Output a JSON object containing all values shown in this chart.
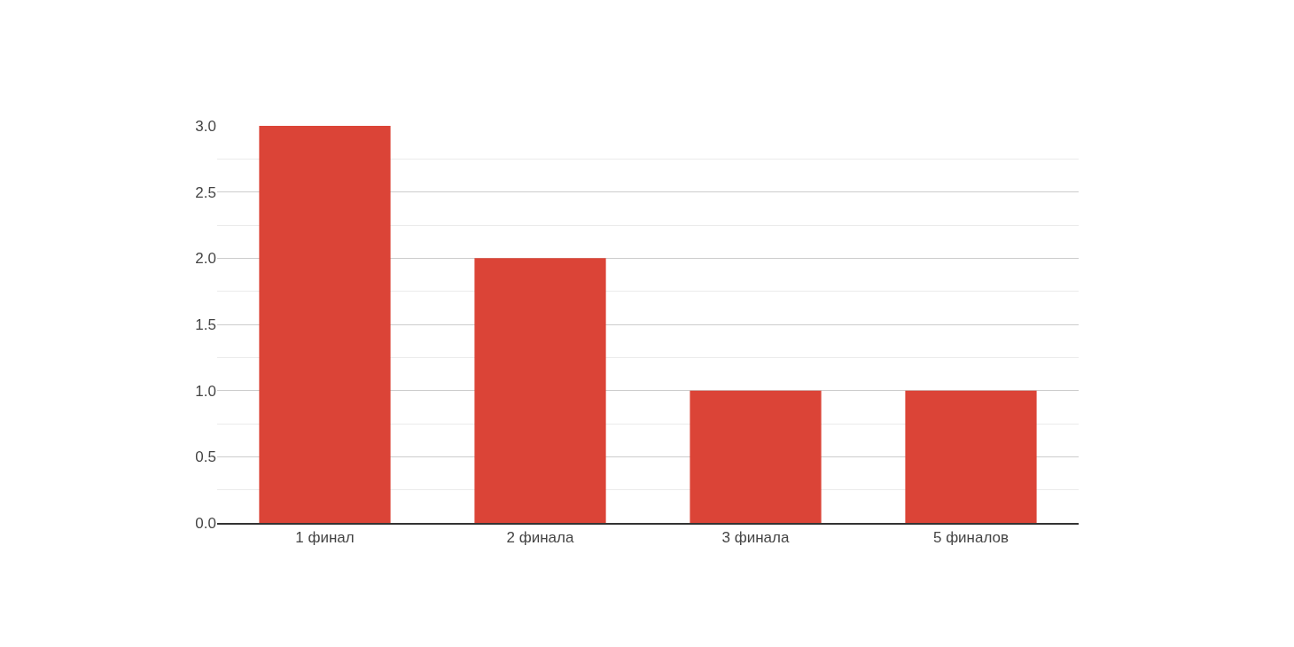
{
  "chart_data": {
    "type": "bar",
    "categories": [
      "1 финал",
      "2 финала",
      "3 финала",
      "5 финалов"
    ],
    "values": [
      3,
      2,
      1,
      1
    ],
    "color": "#db4437",
    "ylim": [
      0,
      3
    ],
    "yticks": [
      {
        "value": 0,
        "label": "0.0"
      },
      {
        "value": 0.5,
        "label": "0.5"
      },
      {
        "value": 1,
        "label": "1.0"
      },
      {
        "value": 1.5,
        "label": "1.5"
      },
      {
        "value": 2,
        "label": "2.0"
      },
      {
        "value": 2.5,
        "label": "2.5"
      },
      {
        "value": 3,
        "label": "3.0"
      }
    ],
    "grid": "y",
    "legend": false
  }
}
